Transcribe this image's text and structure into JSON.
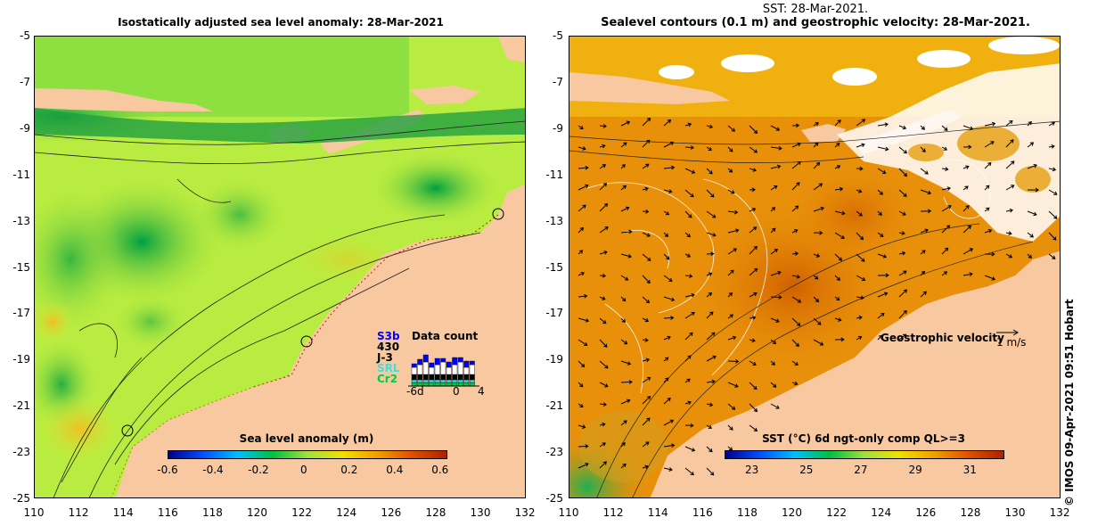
{
  "left_panel": {
    "title": "Isostatically adjusted sea level anomaly: 28-Mar-2021",
    "y_ticks": [
      "-5",
      "-7",
      "-9",
      "-11",
      "-13",
      "-15",
      "-17",
      "-19",
      "-21",
      "-23",
      "-25"
    ],
    "x_ticks": [
      "110",
      "112",
      "114",
      "116",
      "118",
      "120",
      "122",
      "124",
      "126",
      "128",
      "130",
      "132"
    ],
    "colorbar": {
      "title": "Sea level anomaly (m)",
      "ticks": [
        "-0.6",
        "-0.4",
        "-0.2",
        "0",
        "0.2",
        "0.4",
        "0.6"
      ]
    },
    "data_count": {
      "title": "Data count",
      "missions": [
        "S3b",
        "430",
        "J-3",
        "SRL",
        "Cr2"
      ],
      "mission_colors": [
        "#0000ff",
        "#000000",
        "#000000",
        "#44dddd",
        "#00cc44"
      ],
      "axis_ticks": [
        "-6d",
        "0",
        "4"
      ]
    }
  },
  "right_panel": {
    "title_line1": "SST: 28-Mar-2021.",
    "title_line2": "Sealevel contours (0.1 m) and geostrophic velocity: 28-Mar-2021.",
    "y_ticks": [
      "-5",
      "-7",
      "-9",
      "-11",
      "-13",
      "-15",
      "-17",
      "-19",
      "-21",
      "-23",
      "-25"
    ],
    "x_ticks": [
      "110",
      "112",
      "114",
      "116",
      "118",
      "120",
      "122",
      "124",
      "126",
      "128",
      "130",
      "132"
    ],
    "velocity_legend": "Geostrophic velocity",
    "velocity_scale": "1 m/s",
    "colorbar": {
      "title": "SST (°C) 6d ngt-only comp QL>=3",
      "ticks": [
        "23",
        "25",
        "27",
        "29",
        "31"
      ]
    }
  },
  "credit": "© IMOS 09-Apr-2021 09:51 Hobart",
  "colors": {
    "land": "#f8c8a0",
    "sla_low": "#00a040",
    "sla_high": "#e8e040",
    "sst_main": "#e8900a",
    "sst_warm": "#d86a00",
    "cloud": "#ffffff"
  }
}
